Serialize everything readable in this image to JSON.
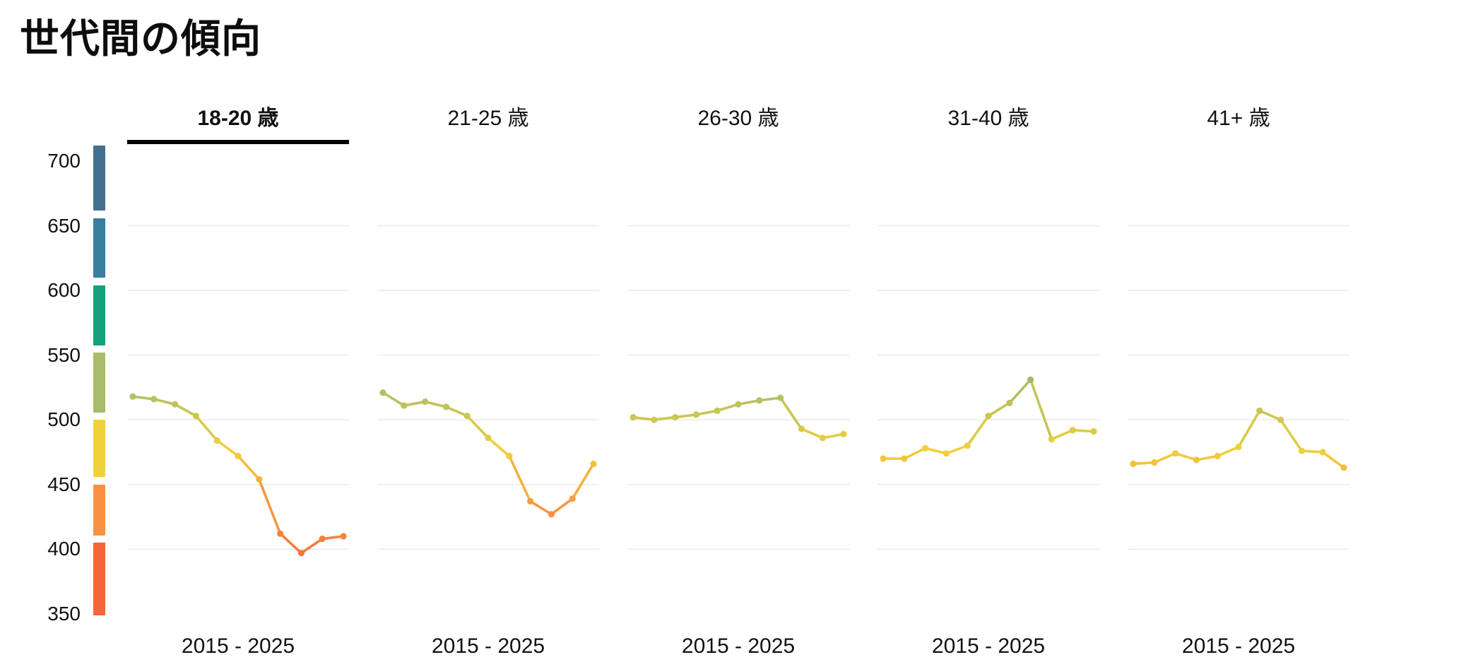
{
  "page_title": "世代間の傾向",
  "chart_data": {
    "type": "line",
    "layout": "small-multiples",
    "title": "世代間の傾向",
    "x_range_label": "2015 - 2025",
    "x": [
      2015,
      2016,
      2017,
      2018,
      2019,
      2020,
      2021,
      2022,
      2023,
      2024,
      2025
    ],
    "ylim": [
      350,
      700
    ],
    "yticks": [
      700,
      650,
      600,
      550,
      500,
      450,
      400,
      350
    ],
    "gridlines": [
      650,
      600,
      550,
      500,
      450,
      400
    ],
    "grid": true,
    "legend_position": "left",
    "selected_series": "18-20 歳",
    "color_scale": [
      {
        "from": 660,
        "to": 712,
        "color": "#44708f"
      },
      {
        "from": 608,
        "to": 656,
        "color": "#3a7f9f"
      },
      {
        "from": 556,
        "to": 604,
        "color": "#17a07c"
      },
      {
        "from": 504,
        "to": 552,
        "color": "#a8bc6a"
      },
      {
        "from": 454,
        "to": 500,
        "color": "#f0d13c"
      },
      {
        "from": 409,
        "to": 450,
        "color": "#f79242"
      },
      {
        "from": 347,
        "to": 405,
        "color": "#f4653a"
      }
    ],
    "series": [
      {
        "name": "18-20 歳",
        "selected": true,
        "values": [
          518,
          516,
          512,
          503,
          484,
          472,
          454,
          412,
          397,
          408,
          410
        ]
      },
      {
        "name": "21-25 歳",
        "selected": false,
        "values": [
          521,
          511,
          514,
          510,
          503,
          486,
          472,
          437,
          427,
          439,
          466
        ]
      },
      {
        "name": "26-30 歳",
        "selected": false,
        "values": [
          502,
          500,
          502,
          504,
          507,
          512,
          515,
          517,
          493,
          486,
          489
        ]
      },
      {
        "name": "31-40 歳",
        "selected": false,
        "values": [
          470,
          470,
          478,
          474,
          480,
          503,
          513,
          531,
          485,
          492,
          491
        ]
      },
      {
        "name": "41+ 歳",
        "selected": false,
        "values": [
          466,
          467,
          474,
          469,
          472,
          479,
          507,
          500,
          476,
          475,
          463
        ]
      }
    ]
  }
}
